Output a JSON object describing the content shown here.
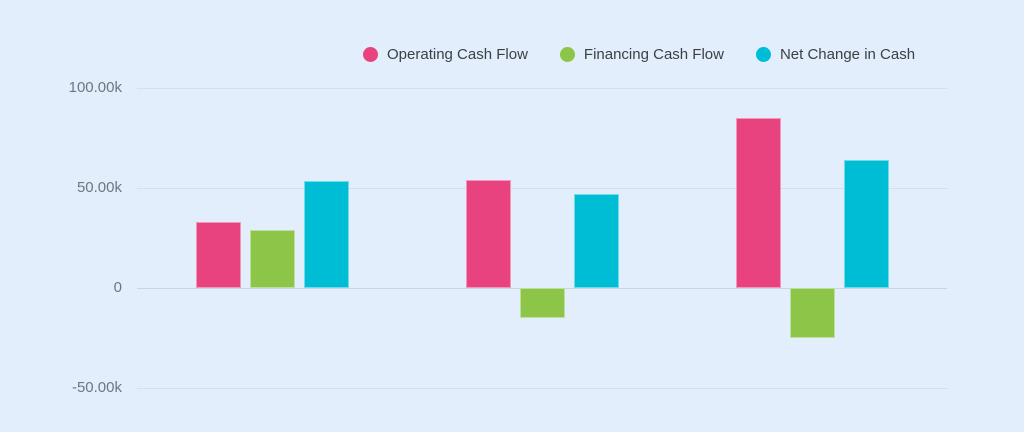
{
  "chart": {
    "background_color": "#E2EEFB",
    "legend_position": "top"
  },
  "chart_data": {
    "type": "bar",
    "title": "",
    "categories": [
      "",
      "",
      ""
    ],
    "series": [
      {
        "name": "Operating Cash Flow",
        "color": "#E8437E",
        "values": [
          33000,
          54000,
          85000
        ]
      },
      {
        "name": "Financing Cash Flow",
        "color": "#8DC548",
        "values": [
          29000,
          -15000,
          -25000
        ]
      },
      {
        "name": "Net Change in Cash",
        "color": "#00BDD6",
        "values": [
          53500,
          47000,
          64000
        ]
      }
    ],
    "y_axis": {
      "tick_labels": [
        "100.00k",
        "50.00k",
        "0",
        "-50.00k"
      ],
      "tick_values": [
        100000,
        50000,
        0,
        -50000
      ],
      "range": [
        -50000,
        100000
      ]
    },
    "grid": true,
    "x_axis_labels_visible": false,
    "legend": {
      "items": [
        {
          "label": "Operating Cash Flow"
        },
        {
          "label": "Financing Cash Flow"
        },
        {
          "label": "Net Change in Cash"
        }
      ]
    }
  }
}
